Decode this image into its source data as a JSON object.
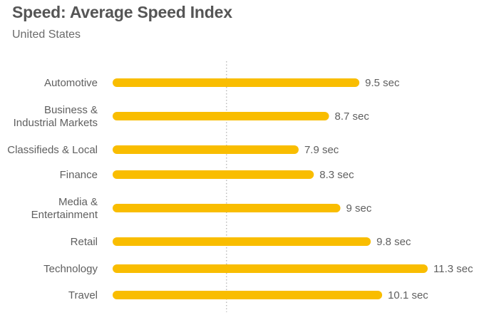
{
  "title": "Speed: Average Speed Index",
  "subtitle": "United States",
  "colors": {
    "bar": "#F9BD00",
    "label": "#5f5f5f",
    "reference_line": "#b5b5b5"
  },
  "chart_data": {
    "type": "bar",
    "orientation": "horizontal",
    "title": "Speed: Average Speed Index",
    "subtitle": "United States",
    "categories": [
      [
        "Automotive"
      ],
      [
        "Business &",
        "Industrial Markets"
      ],
      [
        "Classifieds & Local"
      ],
      [
        "Finance"
      ],
      [
        "Media &",
        "Entertainment"
      ],
      [
        "Retail"
      ],
      [
        "Technology"
      ],
      [
        "Travel"
      ]
    ],
    "values": [
      9.5,
      8.7,
      7.9,
      8.3,
      9.0,
      9.8,
      11.3,
      10.1
    ],
    "value_labels": [
      "9.5 sec",
      "8.7 sec",
      "7.9 sec",
      "8.3 sec",
      "9 sec",
      "9.8 sec",
      "11.3 sec",
      "10.1 sec"
    ],
    "unit": "sec",
    "xlim": [
      3.0,
      11.3
    ],
    "reference_line_x": 6.0,
    "grid": false,
    "legend": "none"
  }
}
